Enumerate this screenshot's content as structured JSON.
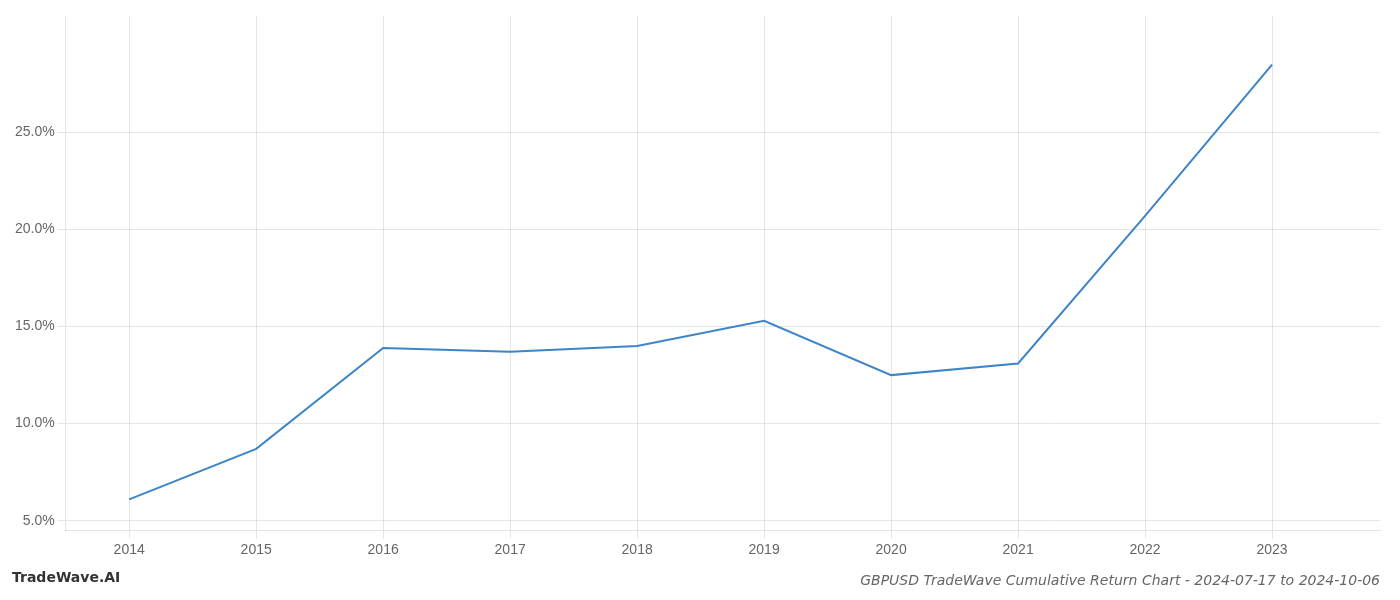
{
  "chart_data": {
    "type": "line",
    "title": "GBPUSD TradeWave Cumulative Return Chart - 2024-07-17 to 2024-10-06",
    "annotations": [
      "TradeWave.AI"
    ],
    "x": [
      2014,
      2015,
      2016,
      2017,
      2018,
      2019,
      2020,
      2021,
      2022,
      2023
    ],
    "values": [
      6.1,
      8.7,
      13.9,
      13.7,
      14.0,
      15.3,
      12.5,
      13.1,
      20.7,
      28.5
    ],
    "color": "#3d85c8",
    "xlim": [
      2013.5,
      2023.85
    ],
    "xticks": [
      2014,
      2015,
      2016,
      2017,
      2018,
      2019,
      2020,
      2021,
      2022,
      2023
    ],
    "ylim": [
      4.5,
      31
    ],
    "yticks": [
      {
        "value": 5.0,
        "label": "5.0%"
      },
      {
        "value": 10.0,
        "label": "10.0%"
      },
      {
        "value": 15.0,
        "label": "15.0%"
      },
      {
        "value": 20.0,
        "label": "20.0%"
      },
      {
        "value": 25.0,
        "label": "25.0%"
      }
    ],
    "grid": true
  }
}
